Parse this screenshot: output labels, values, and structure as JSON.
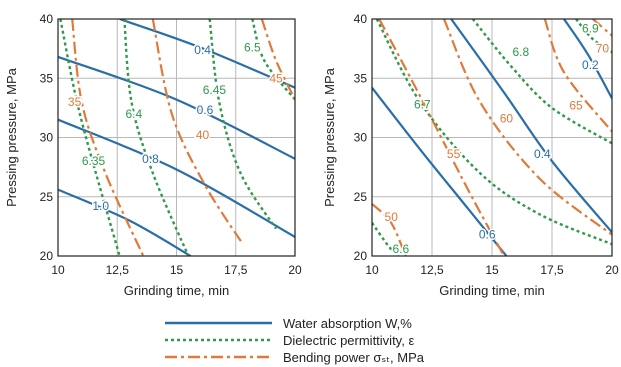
{
  "colors": {
    "water": "#2a6ea8",
    "dielectric": "#2e9a4a",
    "bending": "#e07a3a",
    "grid": "#b8b8b8",
    "frame": "#222222"
  },
  "legend": [
    {
      "key": "water",
      "label": "Water absorption W,%",
      "style": "solid"
    },
    {
      "key": "dielectric",
      "label": "Dielectric permittivity, ε",
      "style": "dotted"
    },
    {
      "key": "bending",
      "label": "Bending power σₛₜ, MPa",
      "style": "dashdot"
    }
  ],
  "chart_data": [
    {
      "type": "contour",
      "xlabel": "Grinding time, min",
      "ylabel": "Pressing pressure, MPa",
      "xlim": [
        10,
        20
      ],
      "ylim": [
        20,
        40
      ],
      "xticks": [
        "10",
        "12,5",
        "15",
        "17,5",
        "20"
      ],
      "yticks": [
        "20",
        "25",
        "30",
        "35",
        "40"
      ],
      "grid": true,
      "series": [
        {
          "key": "water",
          "level": "0.4",
          "points": [
            [
              12.6,
              40
            ],
            [
              16,
              37.6
            ],
            [
              20,
              34.2
            ]
          ]
        },
        {
          "key": "water",
          "level": "0.6",
          "points": [
            [
              10,
              36.8
            ],
            [
              15,
              33.2
            ],
            [
              20,
              28.2
            ]
          ]
        },
        {
          "key": "water",
          "level": "0.8",
          "points": [
            [
              10,
              31.5
            ],
            [
              15,
              27.3
            ],
            [
              20,
              21.6
            ]
          ]
        },
        {
          "key": "water",
          "level": "1.0",
          "points": [
            [
              10,
              25.6
            ],
            [
              13,
              23
            ],
            [
              15.6,
              20
            ]
          ]
        },
        {
          "key": "dielectric",
          "level": "6.35",
          "points": [
            [
              10.1,
              40
            ],
            [
              10.8,
              33
            ],
            [
              11.6,
              27
            ],
            [
              12.6,
              20
            ]
          ]
        },
        {
          "key": "dielectric",
          "level": "6.4",
          "points": [
            [
              12.8,
              40
            ],
            [
              13.1,
              33
            ],
            [
              14,
              27
            ],
            [
              15.5,
              20
            ]
          ]
        },
        {
          "key": "dielectric",
          "level": "6.45",
          "points": [
            [
              16.4,
              40
            ],
            [
              16.8,
              33
            ],
            [
              17.7,
              27
            ],
            [
              19.2,
              22.3
            ]
          ]
        },
        {
          "key": "dielectric",
          "level": "6.5",
          "points": [
            [
              18.2,
              40
            ],
            [
              18.7,
              36.5
            ],
            [
              20,
              33.2
            ]
          ]
        },
        {
          "key": "bending",
          "level": "35",
          "points": [
            [
              10.6,
              40
            ],
            [
              11,
              33
            ],
            [
              12,
              27
            ],
            [
              13.6,
              20
            ]
          ]
        },
        {
          "key": "bending",
          "level": "40",
          "points": [
            [
              14,
              40
            ],
            [
              14.8,
              32
            ],
            [
              16.2,
              26
            ],
            [
              17.8,
              21
            ]
          ]
        },
        {
          "key": "bending",
          "level": "45",
          "points": [
            [
              18.6,
              40
            ],
            [
              19.2,
              36.5
            ],
            [
              20,
              33.2
            ]
          ]
        }
      ],
      "labels": [
        {
          "key": "water",
          "text": "0.4",
          "at": [
            16.1,
            37.4
          ]
        },
        {
          "key": "water",
          "text": "0.6",
          "at": [
            16.2,
            32.3
          ]
        },
        {
          "key": "water",
          "text": "0.8",
          "at": [
            13.9,
            28.2
          ]
        },
        {
          "key": "water",
          "text": "1.0",
          "at": [
            11.8,
            24.2
          ]
        },
        {
          "key": "dielectric",
          "text": "6.35",
          "at": [
            11.5,
            28
          ]
        },
        {
          "key": "dielectric",
          "text": "6.4",
          "at": [
            13.2,
            32
          ]
        },
        {
          "key": "dielectric",
          "text": "6.45",
          "at": [
            16.6,
            34
          ]
        },
        {
          "key": "dielectric",
          "text": "6.5",
          "at": [
            18.2,
            37.6
          ]
        },
        {
          "key": "bending",
          "text": "35",
          "at": [
            10.7,
            33
          ]
        },
        {
          "key": "bending",
          "text": "40",
          "at": [
            16.1,
            30.2
          ]
        },
        {
          "key": "bending",
          "text": "45",
          "at": [
            19.2,
            35
          ]
        }
      ]
    },
    {
      "type": "contour",
      "xlabel": "Grinding time, min",
      "ylabel": "Pressing pressure, MPa",
      "xlim": [
        10,
        20
      ],
      "ylim": [
        20,
        40
      ],
      "xticks": [
        "10",
        "12,5",
        "15",
        "17,5",
        "20"
      ],
      "yticks": [
        "20",
        "25",
        "30",
        "35",
        "40"
      ],
      "grid": true,
      "series": [
        {
          "key": "water",
          "level": "0.2",
          "points": [
            [
              18,
              40
            ],
            [
              19,
              37
            ],
            [
              20,
              33.3
            ]
          ]
        },
        {
          "key": "water",
          "level": "0.4",
          "points": [
            [
              13.3,
              40
            ],
            [
              15.5,
              33.8
            ],
            [
              17.5,
              28
            ],
            [
              20,
              22
            ]
          ]
        },
        {
          "key": "water",
          "level": "0.6",
          "points": [
            [
              10,
              34.2
            ],
            [
              12,
              29
            ],
            [
              14,
              24
            ],
            [
              15.6,
              20
            ]
          ]
        },
        {
          "key": "dielectric",
          "level": "6.6",
          "points": [
            [
              10,
              22.8
            ],
            [
              10.7,
              20.8
            ],
            [
              11.1,
              20
            ]
          ]
        },
        {
          "key": "dielectric",
          "level": "6.7",
          "points": [
            [
              10.2,
              40
            ],
            [
              12,
              33
            ],
            [
              14.5,
              27
            ],
            [
              17,
              23.5
            ],
            [
              20,
              21
            ]
          ]
        },
        {
          "key": "dielectric",
          "level": "6.8",
          "points": [
            [
              14.2,
              40
            ],
            [
              15.8,
              36
            ],
            [
              17.5,
              32.5
            ],
            [
              20,
              29.5
            ]
          ]
        },
        {
          "key": "dielectric",
          "level": "6.9",
          "points": [
            [
              18.5,
              40
            ],
            [
              19.2,
              38.3
            ],
            [
              20,
              37.2
            ]
          ]
        },
        {
          "key": "bending",
          "level": "50",
          "points": [
            [
              10,
              24.4
            ],
            [
              10.8,
              22.8
            ],
            [
              11.4,
              20
            ]
          ]
        },
        {
          "key": "bending",
          "level": "55",
          "points": [
            [
              10.3,
              40
            ],
            [
              12,
              33.5
            ],
            [
              14,
              25.6
            ],
            [
              15.5,
              20
            ]
          ]
        },
        {
          "key": "bending",
          "level": "60",
          "points": [
            [
              13,
              40
            ],
            [
              14.5,
              33
            ],
            [
              17,
              26.5
            ],
            [
              20,
              21.8
            ]
          ]
        },
        {
          "key": "bending",
          "level": "65",
          "points": [
            [
              17.2,
              40
            ],
            [
              18,
              35.5
            ],
            [
              20,
              30.5
            ]
          ]
        },
        {
          "key": "bending",
          "level": "70",
          "points": [
            [
              19.2,
              40
            ],
            [
              20,
              38.6
            ]
          ]
        }
      ],
      "labels": [
        {
          "key": "water",
          "text": "0.2",
          "at": [
            19.1,
            36.1
          ]
        },
        {
          "key": "water",
          "text": "0.4",
          "at": [
            17.1,
            28.6
          ]
        },
        {
          "key": "water",
          "text": "0.6",
          "at": [
            14.8,
            21.8
          ]
        },
        {
          "key": "dielectric",
          "text": "6.6",
          "at": [
            11.2,
            20.6
          ]
        },
        {
          "key": "dielectric",
          "text": "6.7",
          "at": [
            12.1,
            32.8
          ]
        },
        {
          "key": "dielectric",
          "text": "6.8",
          "at": [
            16.2,
            37.2
          ]
        },
        {
          "key": "dielectric",
          "text": "6.9",
          "at": [
            19.1,
            39.2
          ]
        },
        {
          "key": "bending",
          "text": "50",
          "at": [
            10.8,
            23.3
          ]
        },
        {
          "key": "bending",
          "text": "55",
          "at": [
            13.4,
            28.6
          ]
        },
        {
          "key": "bending",
          "text": "60",
          "at": [
            15.6,
            31.6
          ]
        },
        {
          "key": "bending",
          "text": "65",
          "at": [
            18.5,
            32.7
          ]
        },
        {
          "key": "bending",
          "text": "70",
          "at": [
            19.6,
            37.5
          ]
        }
      ]
    }
  ]
}
